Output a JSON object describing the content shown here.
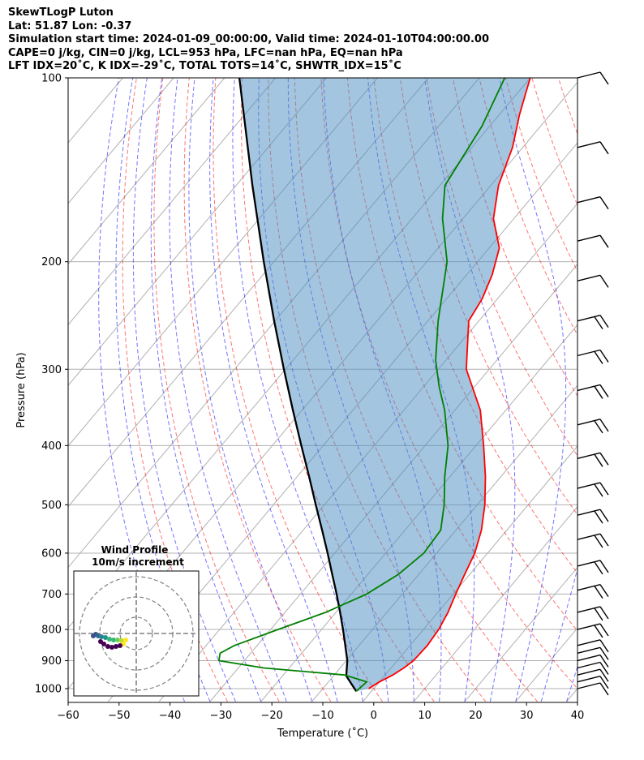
{
  "header": {
    "line1": "SkewTLogP Luton",
    "line2": "Lat: 51.87   Lon: -0.37",
    "line3": "Simulation start time: 2024-01-09_00:00:00, Valid time: 2024-01-10T04:00:00.00",
    "line4": "CAPE=0 j/kg, CIN=0 j/kg, LCL=953 hPa, LFC=nan hPa, EQ=nan hPa",
    "line5": "LFT IDX=20˚C, K IDX=-29˚C, TOTAL TOTS=14˚C, SHWTR_IDX=15˚C"
  },
  "chart_data": {
    "type": "line",
    "xlabel": "Temperature (˚C)",
    "ylabel": "Pressure (hPa)",
    "xlim": [
      -60,
      40
    ],
    "ylim": [
      1050,
      100
    ],
    "y_scale": "log",
    "skew": true,
    "grid": true,
    "x_ticks": [
      "−60",
      "−50",
      "−40",
      "−30",
      "−20",
      "−10",
      "0",
      "10",
      "20",
      "30",
      "40"
    ],
    "y_ticks": [
      "100",
      "200",
      "300",
      "400",
      "500",
      "600",
      "700",
      "800",
      "900",
      "1000"
    ],
    "series": [
      {
        "name": "temperature",
        "color": "#ff0000",
        "points": [
          [
            1000,
            -1.0
          ],
          [
            975,
            0.0
          ],
          [
            950,
            1.5
          ],
          [
            925,
            2.5
          ],
          [
            900,
            3.2
          ],
          [
            850,
            3.4
          ],
          [
            800,
            3.0
          ],
          [
            750,
            2.0
          ],
          [
            700,
            0.5
          ],
          [
            650,
            -1.0
          ],
          [
            600,
            -2.5
          ],
          [
            550,
            -5.0
          ],
          [
            500,
            -8.5
          ],
          [
            450,
            -13.0
          ],
          [
            400,
            -18.5
          ],
          [
            350,
            -25.0
          ],
          [
            300,
            -34.5
          ],
          [
            250,
            -42.0
          ],
          [
            230,
            -43.0
          ],
          [
            210,
            -45.0
          ],
          [
            190,
            -48.0
          ],
          [
            170,
            -54.0
          ],
          [
            150,
            -58.5
          ],
          [
            130,
            -62.0
          ],
          [
            115,
            -66.0
          ],
          [
            100,
            -70.0
          ]
        ]
      },
      {
        "name": "dewpoint",
        "color": "#008000",
        "points": [
          [
            1010,
            -3.0
          ],
          [
            975,
            -2.5
          ],
          [
            950,
            -8.0
          ],
          [
            925,
            -25.0
          ],
          [
            900,
            -35.0
          ],
          [
            875,
            -36.0
          ],
          [
            850,
            -34.5
          ],
          [
            800,
            -28.5
          ],
          [
            750,
            -22.0
          ],
          [
            700,
            -17.0
          ],
          [
            650,
            -14.0
          ],
          [
            600,
            -12.5
          ],
          [
            550,
            -13.0
          ],
          [
            500,
            -16.5
          ],
          [
            450,
            -21.0
          ],
          [
            400,
            -25.5
          ],
          [
            350,
            -32.0
          ],
          [
            320,
            -37.0
          ],
          [
            290,
            -42.0
          ],
          [
            250,
            -48.0
          ],
          [
            200,
            -56.0
          ],
          [
            170,
            -64.0
          ],
          [
            150,
            -69.0
          ],
          [
            120,
            -71.5
          ],
          [
            100,
            -75.0
          ]
        ]
      },
      {
        "name": "parcel",
        "color": "#000000",
        "points": [
          [
            1010,
            -3.0
          ],
          [
            953,
            -7.5
          ],
          [
            900,
            -9.8
          ],
          [
            850,
            -12.7
          ],
          [
            800,
            -15.8
          ],
          [
            750,
            -19.2
          ],
          [
            700,
            -22.9
          ],
          [
            650,
            -27.0
          ],
          [
            600,
            -31.4
          ],
          [
            550,
            -36.3
          ],
          [
            500,
            -41.7
          ],
          [
            450,
            -47.6
          ],
          [
            400,
            -54.3
          ],
          [
            350,
            -61.8
          ],
          [
            300,
            -70.3
          ],
          [
            250,
            -80.2
          ],
          [
            200,
            -92.0
          ],
          [
            150,
            -106.8
          ],
          [
            100,
            -127.1
          ]
        ]
      }
    ],
    "wind_barbs_hpa": [
      100,
      130,
      160,
      185,
      215,
      250,
      285,
      325,
      370,
      420,
      470,
      520,
      570,
      630,
      690,
      750,
      800,
      850,
      875,
      900,
      925,
      950,
      975,
      1000
    ],
    "inset": {
      "title": "Wind Profile",
      "subtitle": "10m/s increment"
    }
  }
}
